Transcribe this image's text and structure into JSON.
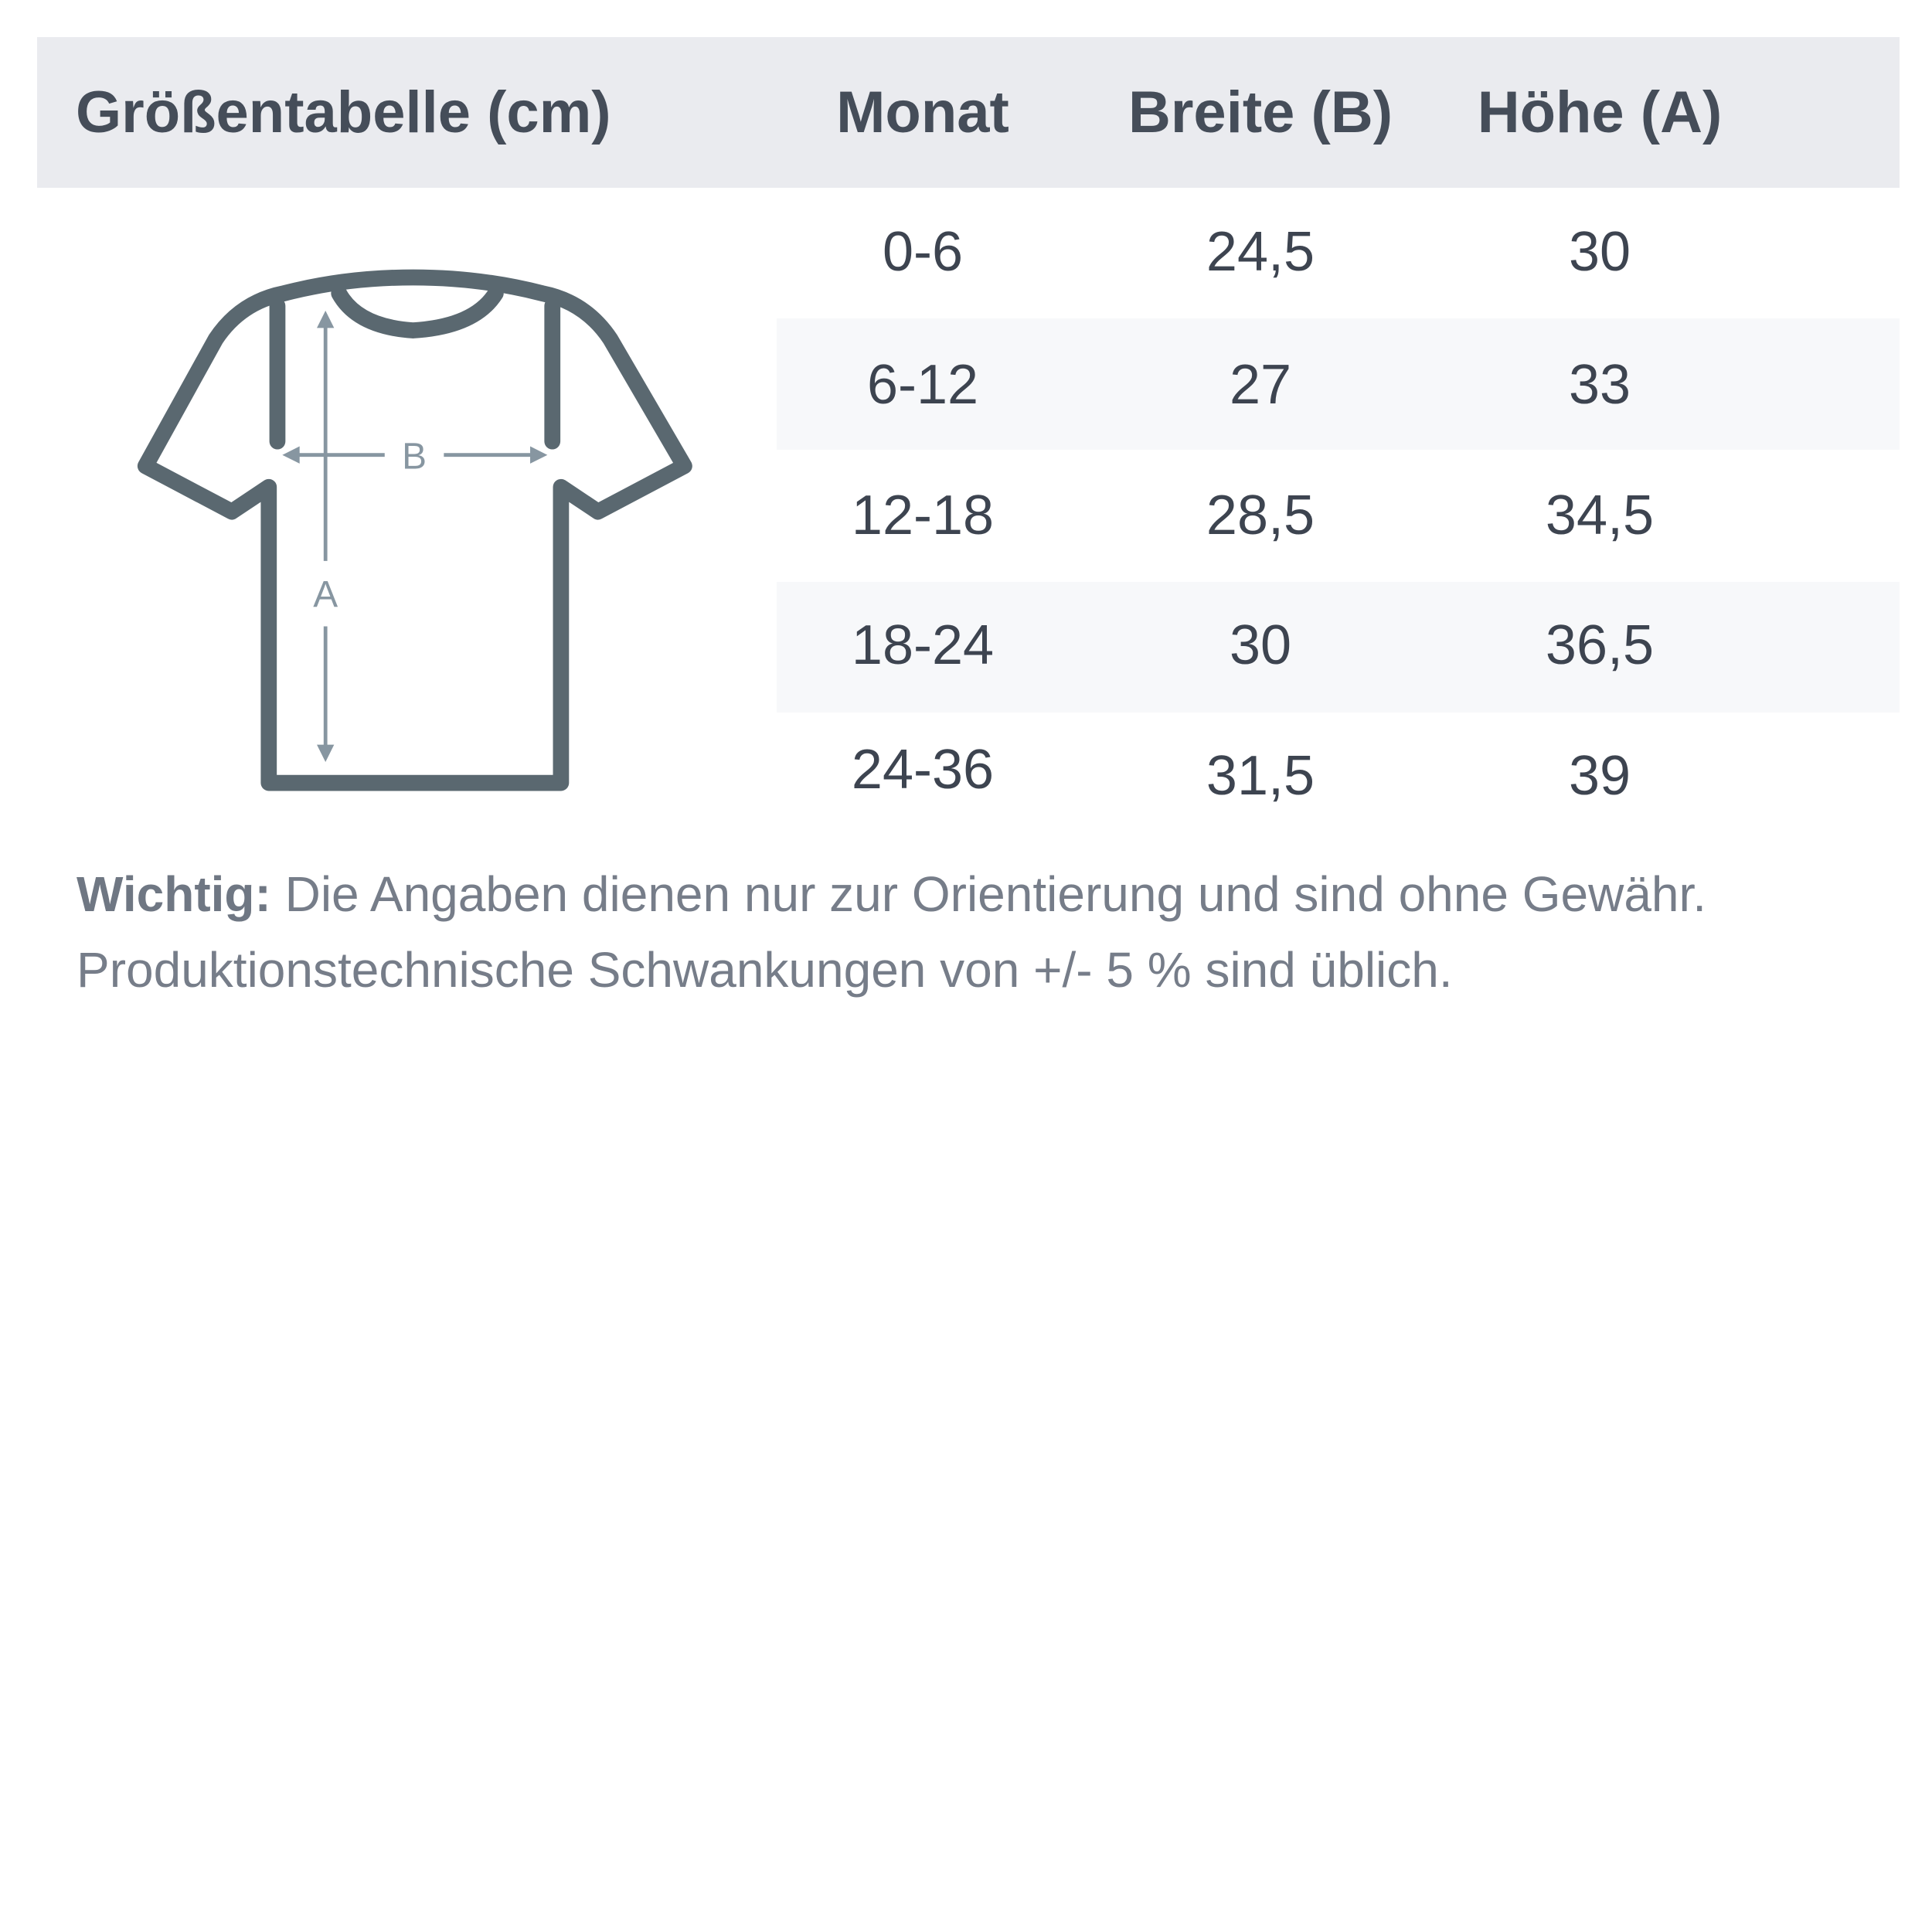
{
  "header": {
    "title": "Größentabelle (cm)",
    "columns": [
      "Monat",
      "Breite (B)",
      "Höhe (A)"
    ]
  },
  "diagram": {
    "label_b": "B",
    "label_a": "A"
  },
  "rows": [
    [
      "0-6",
      "24,5",
      "30"
    ],
    [
      "6-12",
      "27",
      "33"
    ],
    [
      "12-18",
      "28,5",
      "34,5"
    ],
    [
      "18-24",
      "30",
      "36,5"
    ],
    [
      "24-36",
      "31,5",
      "39"
    ]
  ],
  "note": {
    "bold": "Wichtig:",
    "line1": " Die Angaben dienen nur zur Orientierung und sind ohne Gewähr.",
    "line2": "Produktionstechnische Schwankungen von +/- 5 % sind üblich."
  },
  "colors": {
    "header_bg": "#eaebef",
    "stripe": "#f7f8fa",
    "shirt": "#5a6870",
    "arrow": "#8796a1"
  }
}
